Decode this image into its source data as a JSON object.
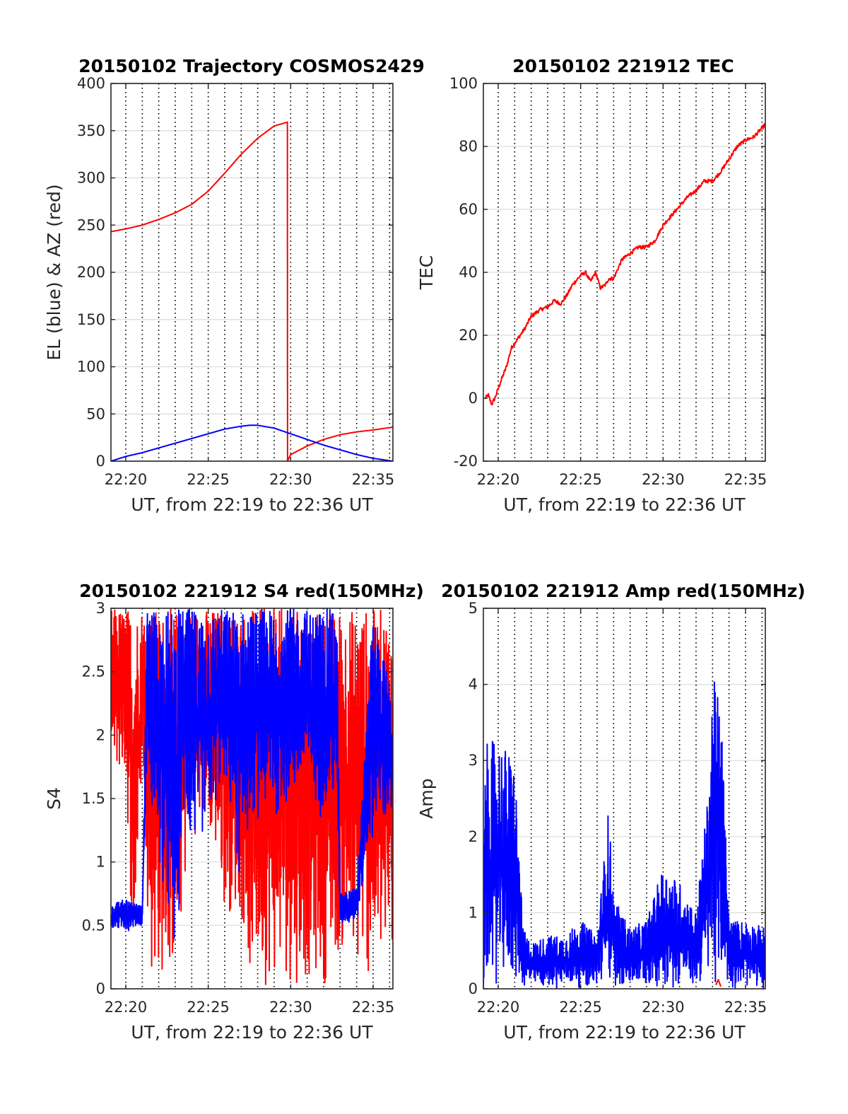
{
  "figure": {
    "background": "#ffffff"
  },
  "chart_data": [
    {
      "type": "line",
      "title": "20150102 Trajectory COSMOS2429",
      "xlabel": "UT, from 22:19 to 22:36 UT",
      "ylabel": "EL (blue) & AZ (red)",
      "x_unit": "minutes after 22:00 UT",
      "xlim": [
        19.1,
        36.2
      ],
      "ylim": [
        0,
        400
      ],
      "x_ticks": [
        20,
        25,
        30,
        35
      ],
      "x_tick_labels": [
        "22:20",
        "22:25",
        "22:30",
        "22:35"
      ],
      "y_ticks": [
        0,
        50,
        100,
        150,
        200,
        250,
        300,
        350,
        400
      ],
      "y_tick_labels": [
        "0",
        "50",
        "100",
        "150",
        "200",
        "250",
        "300",
        "350",
        "400"
      ],
      "grid": {
        "horizontal": true,
        "vertical_minute_lines": true
      },
      "series": [
        {
          "name": "AZ",
          "color": "#ff0000",
          "x": [
            19.1,
            20,
            21,
            22,
            23,
            24,
            25,
            26,
            27,
            28,
            29,
            29.8,
            29.81,
            30,
            31,
            32,
            33,
            34,
            35,
            36.2
          ],
          "y": [
            243,
            246,
            250,
            256,
            263,
            272,
            286,
            305,
            325,
            342,
            355,
            359,
            0,
            7,
            16,
            23,
            28,
            31,
            33,
            36
          ]
        },
        {
          "name": "EL",
          "color": "#0000ff",
          "x": [
            19.1,
            20,
            21,
            22,
            23,
            24,
            25,
            26,
            27,
            27.5,
            28,
            29,
            30,
            31,
            32,
            33,
            34,
            35,
            36.2
          ],
          "y": [
            0,
            5,
            9,
            14,
            19,
            24,
            29,
            34,
            37,
            38,
            38,
            35,
            29,
            23,
            17,
            12,
            7,
            3,
            0
          ]
        }
      ]
    },
    {
      "type": "line",
      "title": "20150102 221912 TEC",
      "xlabel": "UT, from 22:19 to 22:36 UT",
      "ylabel": "TEC",
      "x_unit": "minutes after 22:00 UT",
      "xlim": [
        19.1,
        36.2
      ],
      "ylim": [
        -20,
        100
      ],
      "x_ticks": [
        20,
        25,
        30,
        35
      ],
      "x_tick_labels": [
        "22:20",
        "22:25",
        "22:30",
        "22:35"
      ],
      "y_ticks": [
        -20,
        0,
        20,
        40,
        60,
        80,
        100
      ],
      "y_tick_labels": [
        "-20",
        "0",
        "20",
        "40",
        "60",
        "80",
        "100"
      ],
      "grid": {
        "horizontal": true,
        "vertical_minute_lines": true
      },
      "series": [
        {
          "name": "TEC",
          "color": "#ff0000",
          "x": [
            19.2,
            19.4,
            19.6,
            19.8,
            20.2,
            20.5,
            20.8,
            21.2,
            21.6,
            22,
            22.5,
            23,
            23.4,
            23.8,
            24.2,
            24.5,
            25,
            25.3,
            25.6,
            25.9,
            26.2,
            26.5,
            26.7,
            27,
            27.5,
            28,
            28.5,
            29,
            29.5,
            30,
            30.5,
            31,
            31.5,
            32,
            32.5,
            33,
            33.5,
            34,
            34.5,
            35,
            35.5,
            36.2
          ],
          "y": [
            0,
            1,
            -2,
            0,
            6,
            10,
            16,
            19,
            22,
            26,
            28,
            29,
            31,
            30,
            33,
            36,
            39,
            40,
            37,
            40,
            35,
            36,
            38,
            38,
            44,
            46,
            48,
            48,
            50,
            55,
            58,
            61,
            64,
            66,
            69,
            69,
            72,
            76,
            80,
            82,
            83,
            87
          ]
        }
      ]
    },
    {
      "type": "line",
      "title": "20150102 221912 S4 red(150MHz)",
      "xlabel": "UT, from 22:19 to 22:36 UT",
      "ylabel": "S4",
      "x_unit": "minutes after 22:00 UT",
      "xlim": [
        19.1,
        36.2
      ],
      "ylim": [
        0,
        3
      ],
      "x_ticks": [
        20,
        25,
        30,
        35
      ],
      "x_tick_labels": [
        "22:20",
        "22:25",
        "22:30",
        "22:35"
      ],
      "y_ticks": [
        0,
        0.5,
        1,
        1.5,
        2,
        2.5,
        3
      ],
      "y_tick_labels": [
        "0",
        "0.5",
        "1",
        "1.5",
        "2",
        "2.5",
        "3"
      ],
      "grid": {
        "horizontal": true,
        "vertical_minute_lines": true
      },
      "noisy_series": true,
      "series": [
        {
          "name": "S4 150MHz",
          "color": "#ff0000",
          "envelope": {
            "x": [
              19.1,
              20,
              20.5,
              21,
              21.5,
              22,
              23,
              24,
              25,
              26,
              27,
              27.5,
              28,
              29,
              30,
              31,
              32,
              33,
              34,
              35,
              36.2
            ],
            "low": [
              1.7,
              1.6,
              0.0,
              1.8,
              0.0,
              0.0,
              0.0,
              1.2,
              1.2,
              0.6,
              0.5,
              0.0,
              0.0,
              0.0,
              0.0,
              0.0,
              0.0,
              0.2,
              0.0,
              0.0,
              0.0
            ],
            "high": [
              3,
              3,
              3,
              3,
              3,
              3,
              3,
              3,
              3,
              3,
              3,
              3,
              3,
              3,
              3,
              3,
              3,
              3,
              3,
              3,
              3
            ]
          }
        },
        {
          "name": "S4 blue",
          "color": "#0000ff",
          "envelope": {
            "x": [
              19.1,
              20,
              21,
              21.3,
              22,
              23,
              23.5,
              24,
              25,
              26,
              27,
              27.5,
              28,
              29,
              30,
              31,
              32,
              32.8,
              33,
              34,
              35,
              36.2
            ],
            "low": [
              0.45,
              0.45,
              0.5,
              1.8,
              0.8,
              0.0,
              1.2,
              1.0,
              1.2,
              1.6,
              0.7,
              1.3,
              1.3,
              1.3,
              1.4,
              1.5,
              1.3,
              1.4,
              0.5,
              0.5,
              1.2,
              1.2
            ],
            "high": [
              0.7,
              0.7,
              0.65,
              3,
              3,
              3,
              3,
              3,
              3,
              3,
              3,
              3,
              3,
              3,
              3,
              3,
              3,
              3,
              0.75,
              0.8,
              3,
              2.3
            ]
          }
        }
      ]
    },
    {
      "type": "line",
      "title": "20150102 221912 Amp red(150MHz)",
      "xlabel": "UT, from 22:19 to 22:36 UT",
      "ylabel": "Amp",
      "x_unit": "minutes after 22:00 UT",
      "xlim": [
        19.1,
        36.2
      ],
      "ylim": [
        0,
        5
      ],
      "x_ticks": [
        20,
        25,
        30,
        35
      ],
      "x_tick_labels": [
        "22:20",
        "22:25",
        "22:30",
        "22:35"
      ],
      "y_ticks": [
        0,
        1,
        2,
        3,
        4,
        5
      ],
      "y_tick_labels": [
        "0",
        "1",
        "2",
        "3",
        "4",
        "5"
      ],
      "grid": {
        "horizontal": true,
        "vertical_minute_lines": true
      },
      "noisy_series": true,
      "series": [
        {
          "name": "Amp blue",
          "color": "#0000ff",
          "envelope": {
            "x": [
              19.1,
              19.2,
              20,
              21,
              21.5,
              22,
              23,
              24,
              25,
              25.5,
              26,
              26.7,
              27,
              28,
              29,
              30,
              31,
              32,
              32.7,
              33,
              33.5,
              34,
              34.5,
              35,
              36.2
            ],
            "low": [
              0,
              0,
              0,
              0,
              0,
              0,
              0,
              0,
              0,
              0,
              0,
              0,
              0,
              0,
              0,
              0,
              0,
              0,
              0,
              0,
              0,
              0,
              0,
              0,
              0
            ],
            "high": [
              0,
              3.2,
              3.3,
              3.0,
              0.8,
              0.6,
              0.7,
              0.7,
              0.9,
              0.8,
              0.7,
              2.4,
              1.2,
              0.8,
              0.9,
              1.6,
              1.4,
              1.0,
              2.5,
              4.1,
              3.8,
              0.9,
              0.9,
              0.9,
              0.8
            ]
          }
        },
        {
          "name": "Amp red",
          "color": "#ff0000",
          "x": [
            33.2,
            33.35,
            33.5
          ],
          "y": [
            0.05,
            0.12,
            0.03
          ]
        }
      ]
    }
  ]
}
